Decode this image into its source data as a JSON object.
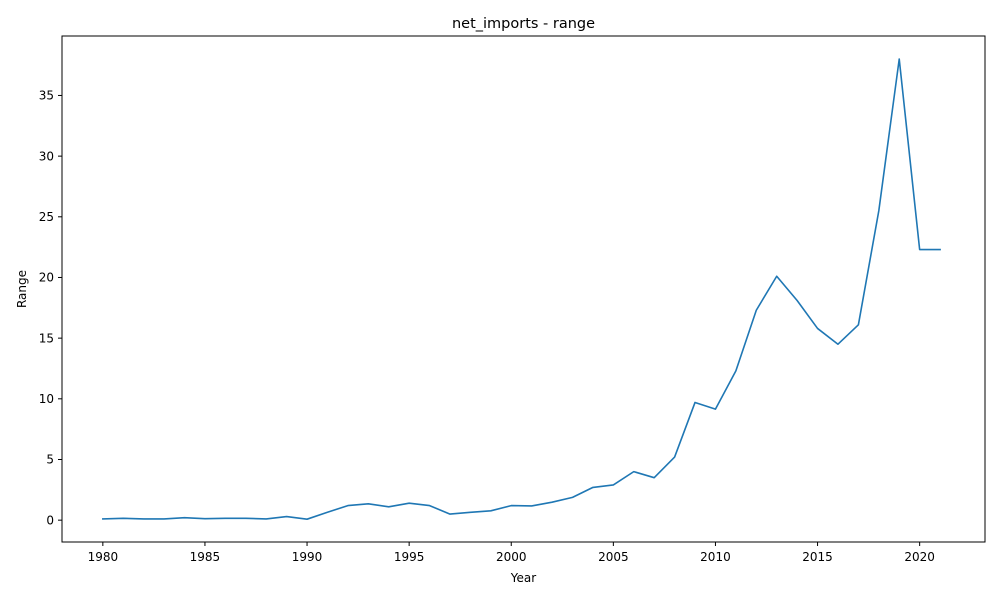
{
  "chart_data": {
    "type": "line",
    "title": "net_imports - range",
    "xlabel": "Year",
    "ylabel": "Range",
    "xlim": [
      1978,
      2023.2
    ],
    "ylim": [
      -1.8,
      39.9
    ],
    "grid": false,
    "legend": "none",
    "x_ticks": [
      1980,
      1985,
      1990,
      1995,
      2000,
      2005,
      2010,
      2015,
      2020
    ],
    "y_ticks": [
      0,
      5,
      10,
      15,
      20,
      25,
      30,
      35
    ],
    "series": [
      {
        "color": "#1f77b4",
        "x": [
          1980,
          1981,
          1982,
          1983,
          1984,
          1985,
          1986,
          1987,
          1988,
          1989,
          1990,
          1991,
          1992,
          1993,
          1994,
          1995,
          1996,
          1997,
          1998,
          1999,
          2000,
          2001,
          2002,
          2003,
          2004,
          2005,
          2006,
          2007,
          2008,
          2009,
          2010,
          2011,
          2012,
          2013,
          2014,
          2015,
          2016,
          2017,
          2018,
          2019,
          2020,
          2021
        ],
        "y": [
          0.1,
          0.15,
          0.1,
          0.1,
          0.2,
          0.12,
          0.15,
          0.15,
          0.1,
          0.3,
          0.08,
          0.65,
          1.2,
          1.35,
          1.1,
          1.4,
          1.2,
          0.5,
          0.65,
          0.77,
          1.2,
          1.17,
          1.48,
          1.88,
          2.7,
          2.9,
          4.0,
          3.5,
          5.2,
          9.7,
          9.15,
          12.3,
          17.3,
          20.1,
          18.1,
          15.8,
          14.5,
          16.1,
          25.5,
          38.0,
          22.3,
          22.3
        ]
      }
    ]
  }
}
